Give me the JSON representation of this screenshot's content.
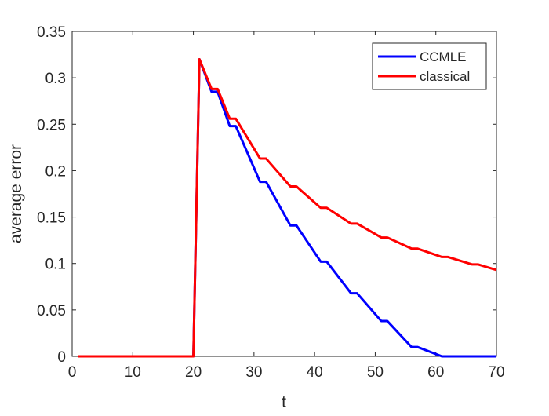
{
  "chart_data": {
    "type": "line",
    "title": "",
    "xlabel": "t",
    "ylabel": "average error",
    "xlim": [
      0,
      70
    ],
    "ylim": [
      0,
      0.35
    ],
    "xticks": [
      0,
      10,
      20,
      30,
      40,
      50,
      60,
      70
    ],
    "xtick_labels": [
      "0",
      "10",
      "20",
      "30",
      "40",
      "50",
      "60",
      "70"
    ],
    "yticks": [
      0,
      0.05,
      0.1,
      0.15,
      0.2,
      0.25,
      0.3,
      0.35
    ],
    "ytick_labels": [
      "0",
      "0.05",
      "0.1",
      "0.15",
      "0.2",
      "0.25",
      "0.3",
      "0.35"
    ],
    "grid": false,
    "legend_position": "top-right",
    "series": [
      {
        "name": "CCMLE",
        "color": "#0000ff",
        "x": [
          1,
          20,
          21,
          23,
          24,
          26,
          27,
          31,
          32,
          36,
          37,
          41,
          42,
          46,
          47,
          51,
          52,
          56,
          57,
          61,
          70
        ],
        "y": [
          0,
          0,
          0.32,
          0.285,
          0.285,
          0.248,
          0.248,
          0.188,
          0.188,
          0.141,
          0.141,
          0.102,
          0.102,
          0.068,
          0.068,
          0.038,
          0.038,
          0.01,
          0.01,
          0,
          0
        ]
      },
      {
        "name": "classical",
        "color": "#ff0000",
        "x": [
          1,
          20,
          21,
          23,
          24,
          26,
          27,
          31,
          32,
          36,
          37,
          41,
          42,
          46,
          47,
          51,
          52,
          56,
          57,
          61,
          62,
          66,
          67,
          70
        ],
        "y": [
          0,
          0,
          0.32,
          0.288,
          0.288,
          0.256,
          0.256,
          0.213,
          0.213,
          0.183,
          0.183,
          0.16,
          0.16,
          0.143,
          0.143,
          0.128,
          0.128,
          0.116,
          0.116,
          0.107,
          0.107,
          0.099,
          0.099,
          0.093
        ]
      }
    ]
  }
}
